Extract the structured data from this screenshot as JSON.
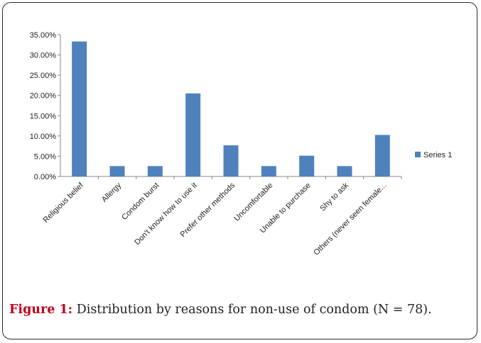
{
  "caption": {
    "label": "Figure 1:",
    "text": " Distribution by reasons for non-use of condom (N = 78)."
  },
  "chart_data": {
    "type": "bar",
    "title": "",
    "xlabel": "",
    "ylabel": "",
    "categories": [
      "Religious belief",
      "Allergy",
      "Condom burst",
      "Don't know how to use it",
      "Prefer other methods",
      "Uncomfortable",
      "Unable to purchase",
      "Shy to ask",
      "Others (never seen female..."
    ],
    "series": [
      {
        "name": "Series 1",
        "values": [
          33.33,
          2.56,
          2.56,
          20.51,
          7.69,
          2.56,
          5.13,
          2.56,
          10.26
        ],
        "color": "#4f81bd"
      }
    ],
    "ylim": [
      0,
      35
    ],
    "yticks": [
      "0.00%",
      "5.00%",
      "10.00%",
      "15.00%",
      "20.00%",
      "25.00%",
      "30.00%",
      "35.00%"
    ],
    "legend": "right",
    "grid": false
  }
}
